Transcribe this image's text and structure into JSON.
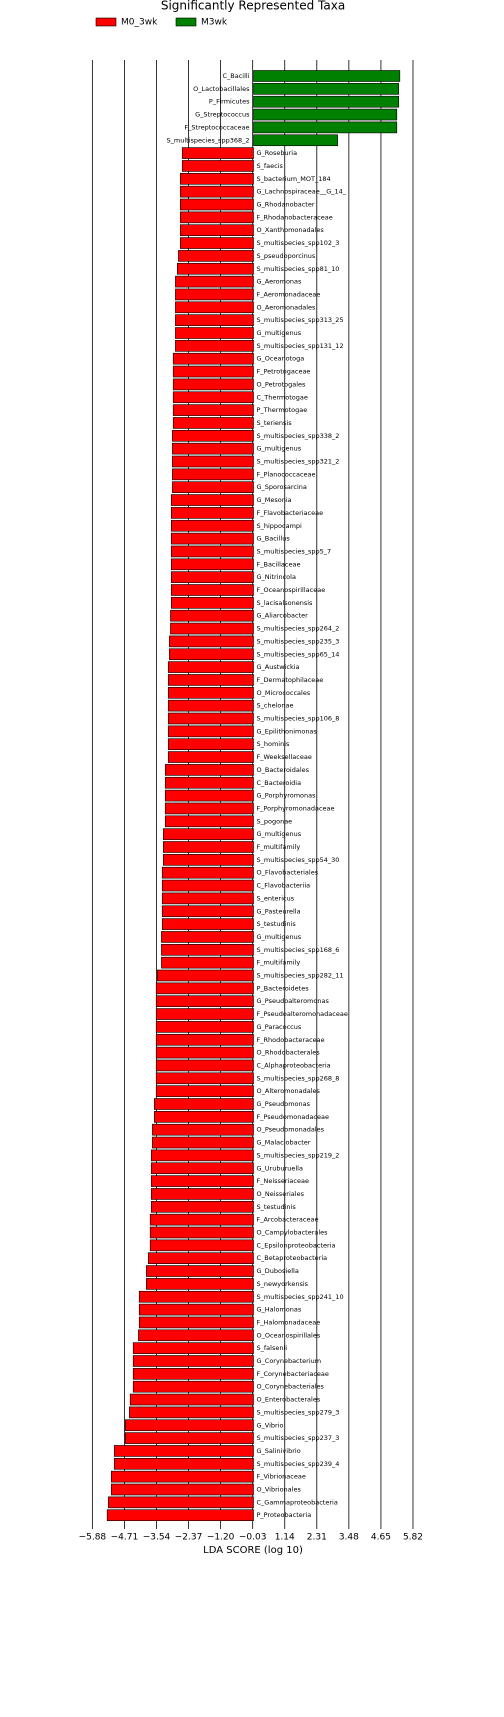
{
  "chart_data": {
    "type": "bar",
    "orientation": "horizontal",
    "title": "Significantly Represented Taxa",
    "xlabel": "LDA SCORE (log 10)",
    "categories": [
      "C_Bacilli",
      "O_Lactobacillales",
      "P_Firmicutes",
      "G_Streptococcus",
      "F_Streptococcaceae",
      "S_multispecies_spp368_2",
      "G_Roseburia",
      "S_faecis",
      "S_bacterium_MOT_184",
      "G_Lachnospiraceae__G_14_",
      "G_Rhodanobacter",
      "F_Rhodanobacteraceae",
      "O_Xanthomonadales",
      "S_multispecies_spp102_3",
      "S_pseudoporcinus",
      "S_multispecies_spp81_10",
      "G_Aeromonas",
      "F_Aeromonadaceae",
      "O_Aeromonadales",
      "S_multispecies_spp313_25",
      "G_multigenus",
      "S_multispecies_spp131_12",
      "G_Oceanotoga",
      "F_Petrotogaceae",
      "O_Petrotogales",
      "C_Thermotogae",
      "P_Thermotogae",
      "S_teriensis",
      "S_multispecies_spp338_2",
      "G_multigenus",
      "S_multispecies_spp321_2",
      "F_Planococcaceae",
      "G_Sporosarcina",
      "G_Mesonia",
      "F_Flavobacteriaceae",
      "S_hippocampi",
      "G_Bacillus",
      "S_multispecies_spp5_7",
      "F_Bacillaceae",
      "G_Nitrincola",
      "F_Oceanospirillaceae",
      "S_lacisalsonensis",
      "G_Aliarcobacter",
      "S_multispecies_spp264_2",
      "S_multispecies_spp235_3",
      "S_multispecies_spp65_14",
      "G_Austwickia",
      "F_Dermatophilaceae",
      "O_Micrococcales",
      "S_chelonae",
      "S_multispecies_spp106_8",
      "G_Epilithonimonas",
      "S_hominis",
      "F_Weeksellaceae",
      "O_Bacteroidales",
      "C_Bacteroidia",
      "G_Porphyromonas",
      "F_Porphyromonadaceae",
      "S_pogonae",
      "G_multigenus",
      "F_multifamily",
      "S_multispecies_spp54_30",
      "O_Flavobacteriales",
      "C_Flavobacteriia",
      "S_entericus",
      "G_Pasteurella",
      "S_testudinis",
      "G_multigenus",
      "S_multispecies_spp168_6",
      "F_multifamily",
      "S_multispecies_spp282_11",
      "P_Bacteroidetes",
      "G_Pseudoalteromonas",
      "F_Pseudoalteromonadaceae",
      "G_Paracoccus",
      "F_Rhodobacteraceae",
      "O_Rhodobacterales",
      "C_Alphaproteobacteria",
      "S_multispecies_spp268_8",
      "O_Alteromonadales",
      "G_Pseudomonas",
      "F_Pseudomonadaceae",
      "O_Pseudomonadales",
      "G_Malaciobacter",
      "S_multispecies_spp219_2",
      "G_Uruburuella",
      "F_Neisseriaceae",
      "O_Neisseriales",
      "S_testudinis",
      "F_Arcobacteraceae",
      "O_Campylobacterales",
      "C_Epsilonproteobacteria",
      "C_Betaproteobacteria",
      "G_Dubosiella",
      "S_newyorkensis",
      "S_multispecies_spp241_10",
      "G_Halomonas",
      "F_Halomonadaceae",
      "O_Oceanospirillales",
      "S_falsenii",
      "G_Corynebacterium",
      "F_Corynebacteriaceae",
      "O_Corynebacteriales",
      "O_Enterobacterales",
      "S_multispecies_spp279_3",
      "G_Vibrio",
      "S_multispecies_spp237_3",
      "G_Salinivibrio",
      "S_multispecies_spp239_4",
      "F_Vibrionaceae",
      "O_Vibrionales",
      "C_Gammaproteobacteria",
      "P_Proteobacteria"
    ],
    "series": [
      {
        "name": "M0_3wk",
        "color": "#ff0000",
        "values": [
          null,
          null,
          null,
          null,
          null,
          null,
          -2.6,
          -2.6,
          -2.67,
          -2.67,
          -2.67,
          -2.67,
          -2.67,
          -2.67,
          -2.74,
          -2.78,
          -2.85,
          -2.85,
          -2.85,
          -2.85,
          -2.85,
          -2.85,
          -2.93,
          -2.93,
          -2.93,
          -2.93,
          -2.93,
          -2.93,
          -2.96,
          -2.96,
          -2.96,
          -2.96,
          -2.96,
          -3.0,
          -3.0,
          -3.0,
          -3.0,
          -3.0,
          -3.0,
          -3.0,
          -3.0,
          -3.0,
          -3.03,
          -3.03,
          -3.07,
          -3.07,
          -3.11,
          -3.11,
          -3.11,
          -3.11,
          -3.11,
          -3.11,
          -3.11,
          -3.11,
          -3.22,
          -3.22,
          -3.22,
          -3.22,
          -3.22,
          -3.29,
          -3.29,
          -3.29,
          -3.33,
          -3.33,
          -3.33,
          -3.33,
          -3.33,
          -3.36,
          -3.36,
          -3.36,
          -3.51,
          -3.55,
          -3.55,
          -3.55,
          -3.55,
          -3.55,
          -3.55,
          -3.55,
          -3.55,
          -3.55,
          -3.62,
          -3.62,
          -3.69,
          -3.69,
          -3.73,
          -3.73,
          -3.73,
          -3.73,
          -3.73,
          -3.77,
          -3.77,
          -3.77,
          -3.84,
          -3.91,
          -3.91,
          -4.17,
          -4.17,
          -4.17,
          -4.2,
          -4.39,
          -4.39,
          -4.39,
          -4.39,
          -4.5,
          -4.53,
          -4.68,
          -4.68,
          -5.08,
          -5.08,
          -5.19,
          -5.19,
          -5.3,
          -5.34
        ]
      },
      {
        "name": "M3wk",
        "color": "#008000",
        "values": [
          5.34,
          5.3,
          5.3,
          5.23,
          5.23,
          3.07,
          null,
          null,
          null,
          null,
          null,
          null,
          null,
          null,
          null,
          null,
          null,
          null,
          null,
          null,
          null,
          null,
          null,
          null,
          null,
          null,
          null,
          null,
          null,
          null,
          null,
          null,
          null,
          null,
          null,
          null,
          null,
          null,
          null,
          null,
          null,
          null,
          null,
          null,
          null,
          null,
          null,
          null,
          null,
          null,
          null,
          null,
          null,
          null,
          null,
          null,
          null,
          null,
          null,
          null,
          null,
          null,
          null,
          null,
          null,
          null,
          null,
          null,
          null,
          null,
          null,
          null,
          null,
          null,
          null,
          null,
          null,
          null,
          null,
          null,
          null,
          null,
          null,
          null,
          null,
          null,
          null,
          null,
          null,
          null,
          null,
          null,
          null,
          null,
          null,
          null,
          null,
          null,
          null,
          null,
          null,
          null,
          null,
          null,
          null,
          null,
          null,
          null,
          null,
          null,
          null,
          null,
          null
        ]
      }
    ],
    "xlim": [
      -6.2,
      6.2
    ],
    "xticks": [
      {
        "value": -5.88,
        "label": "−5.88"
      },
      {
        "value": -4.71,
        "label": "−4.71"
      },
      {
        "value": -3.54,
        "label": "−3.54"
      },
      {
        "value": -2.37,
        "label": "−2.37"
      },
      {
        "value": -1.2,
        "label": "−1.20"
      },
      {
        "value": -0.03,
        "label": "−0.03"
      },
      1.14,
      2.31,
      3.48,
      4.65,
      5.82
    ],
    "grid": true
  }
}
